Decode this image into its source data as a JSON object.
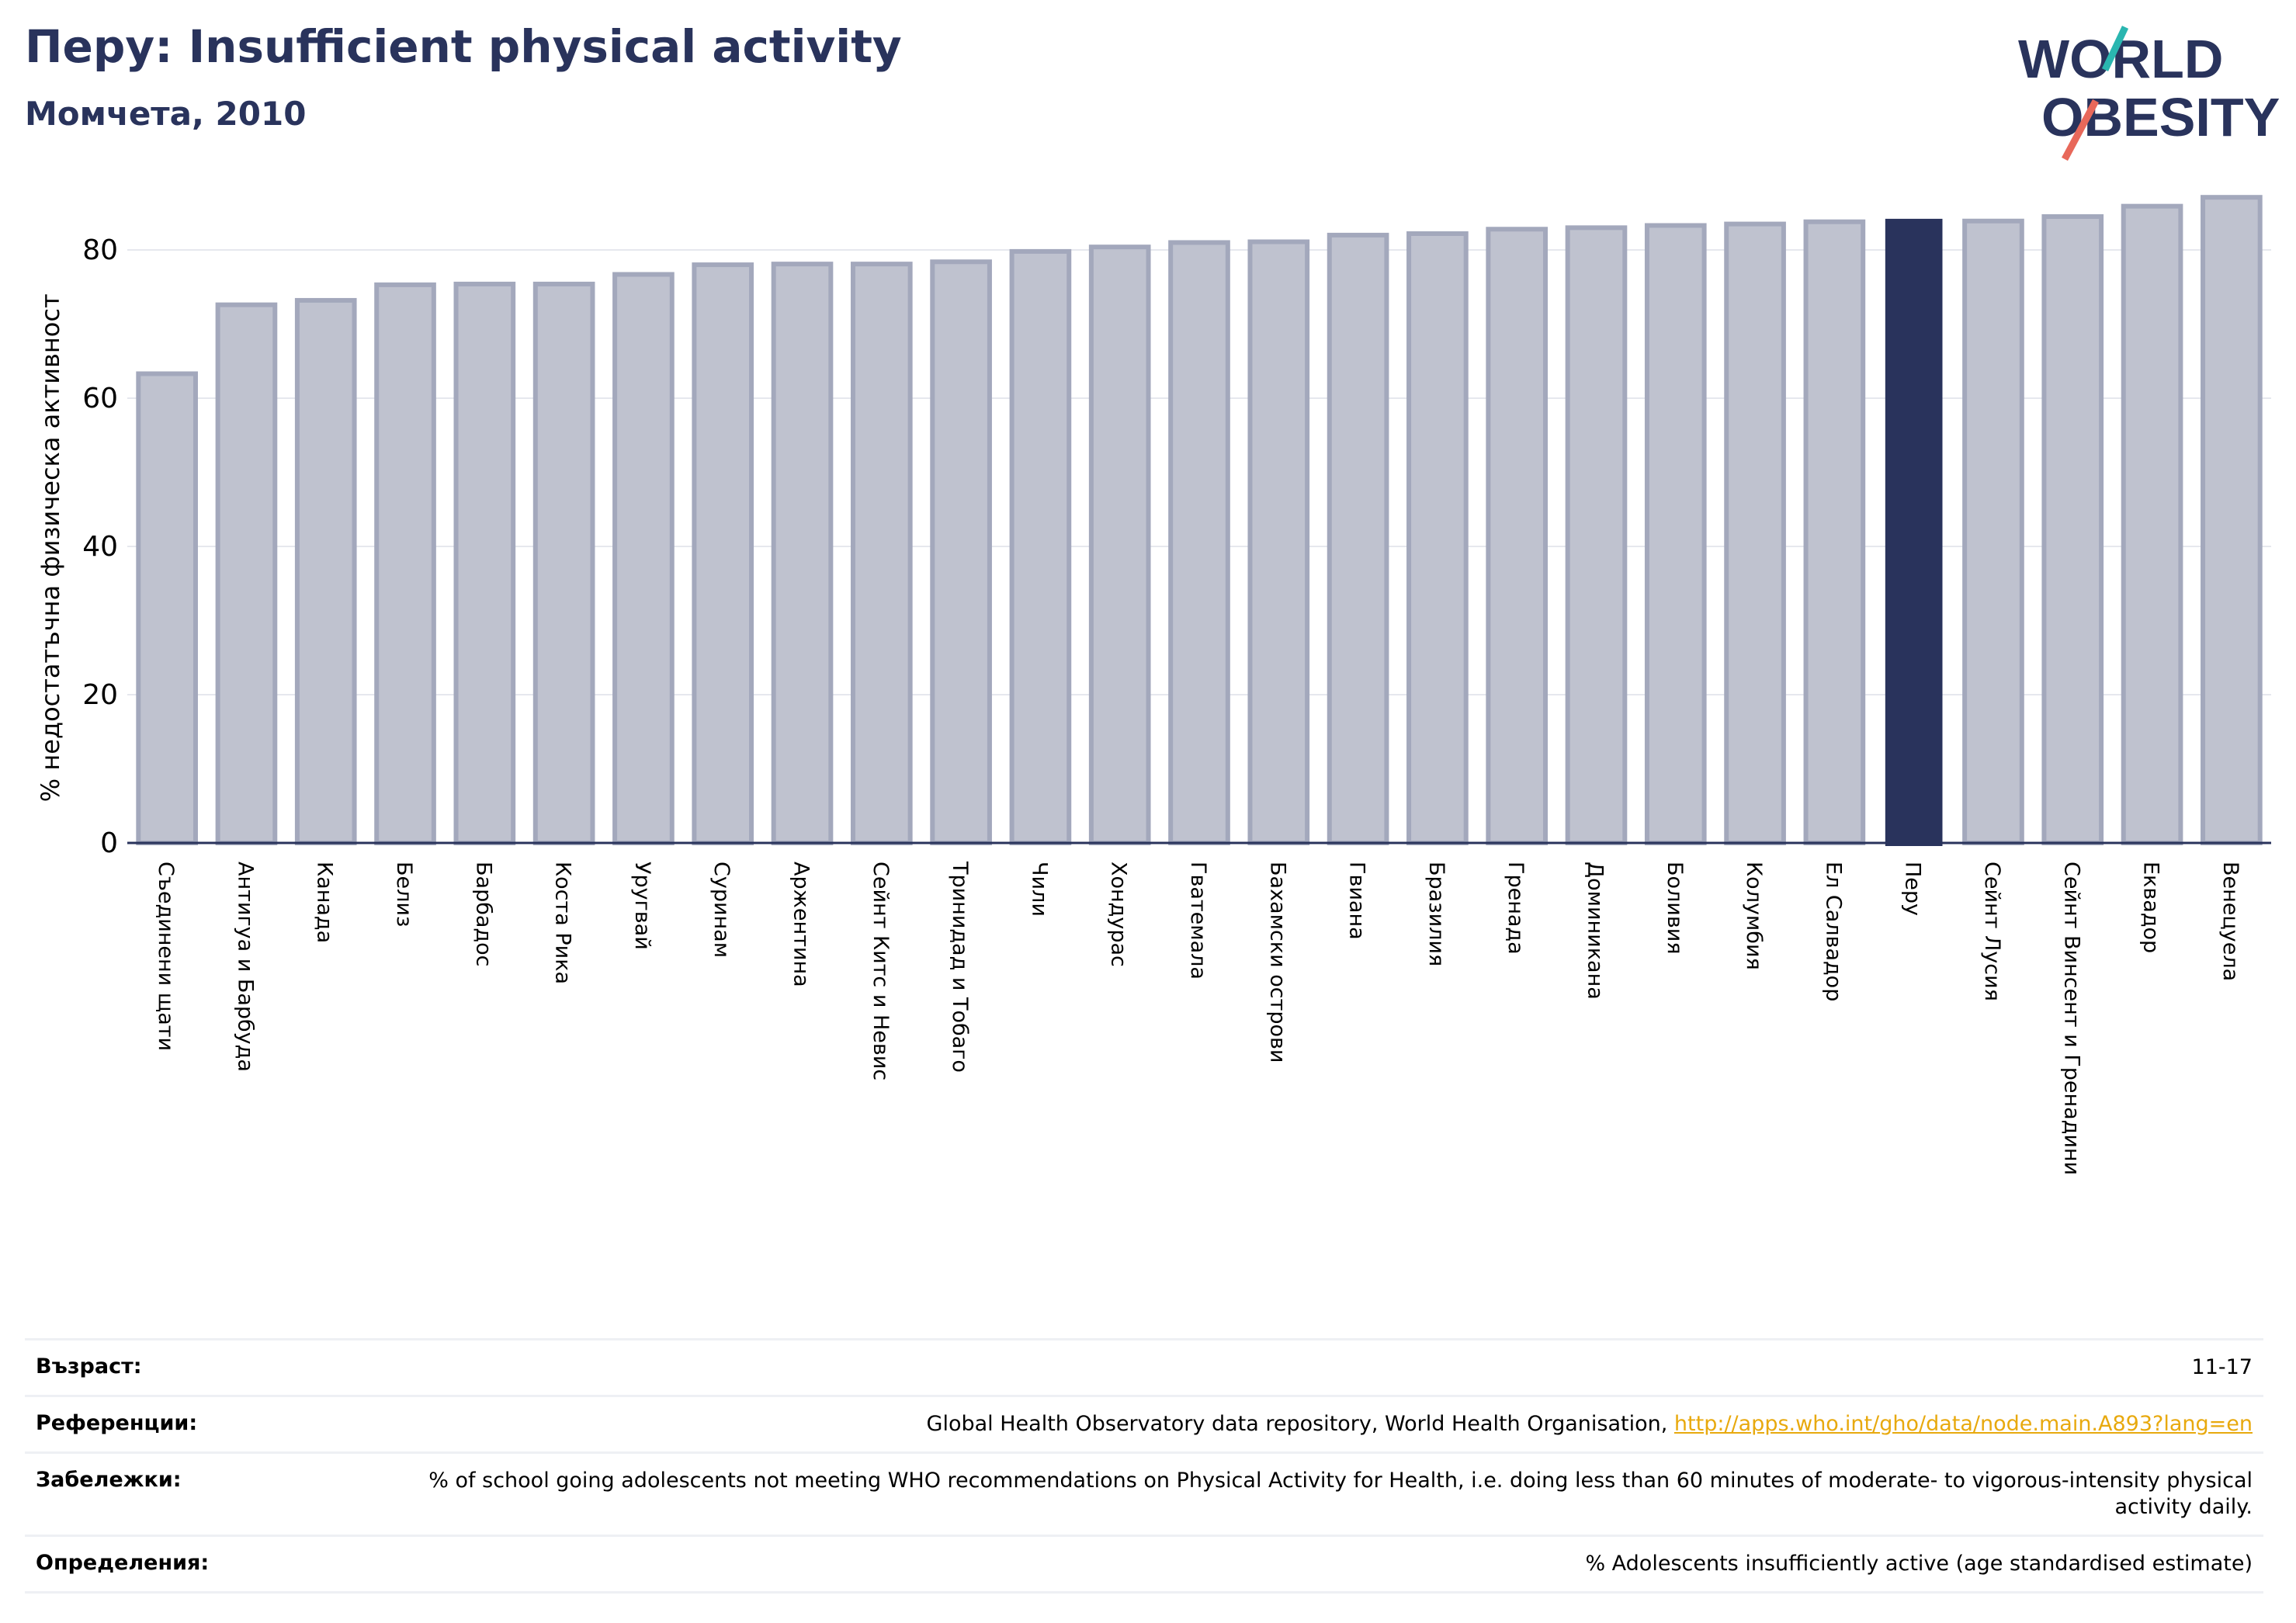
{
  "header": {
    "title": "Перу: Insufficient physical activity",
    "subtitle": "Момчета, 2010",
    "logo_text": "WORLD OBESITY"
  },
  "colors": {
    "brand": "#29335c",
    "bar_default": "#bfc2cf",
    "bar_highlight": "#29335c",
    "logo_teal": "#2ab6b0",
    "logo_coral": "#e8685a",
    "link": "#e8a90e"
  },
  "chart_data": {
    "type": "bar",
    "ylabel": "% недостатъчна физическа активност",
    "ylim": [
      0,
      88
    ],
    "yticks": [
      0,
      20,
      40,
      60,
      80
    ],
    "grid": true,
    "highlight": "Перу",
    "categories": [
      "Съединени щати",
      "Антигуа и Барбуда",
      "Канада",
      "Белиз",
      "Барбадос",
      "Коста Рика",
      "Уругвай",
      "Суринам",
      "Аржентина",
      "Сейнт Китс и Невис",
      "Тринидад и Тобаго",
      "Чили",
      "Хондурас",
      "Гватемала",
      "Бахамски острови",
      "Гвиана",
      "Бразилия",
      "Гренада",
      "Доминикана",
      "Боливия",
      "Колумбия",
      "Ел Салвадор",
      "Перу",
      "Сейнт Лусия",
      "Сейнт Винсент и Гренадини",
      "Еквадор",
      "Венецуела"
    ],
    "values": [
      63.3,
      72.6,
      73.2,
      75.3,
      75.4,
      75.4,
      76.7,
      78.0,
      78.1,
      78.1,
      78.4,
      79.8,
      80.4,
      81.0,
      81.1,
      82.0,
      82.2,
      82.8,
      83.0,
      83.3,
      83.5,
      83.8,
      84.2,
      83.9,
      84.5,
      85.9,
      87.1
    ]
  },
  "meta": {
    "rows": [
      {
        "label": "Възраст:",
        "value": "11-17"
      },
      {
        "label": "Референции:",
        "value": "Global Health Observatory data repository, World Health Organisation, ",
        "link": "http://apps.who.int/gho/data/node.main.A893?lang=en"
      },
      {
        "label": "Забележки:",
        "value": "% of school going adolescents not meeting WHO recommendations on Physical Activity for Health, i.e. doing less than 60 minutes of moderate- to vigorous-intensity physical activity daily."
      },
      {
        "label": "Определения:",
        "value": "% Adolescents insufficiently active (age standardised estimate)"
      }
    ]
  }
}
